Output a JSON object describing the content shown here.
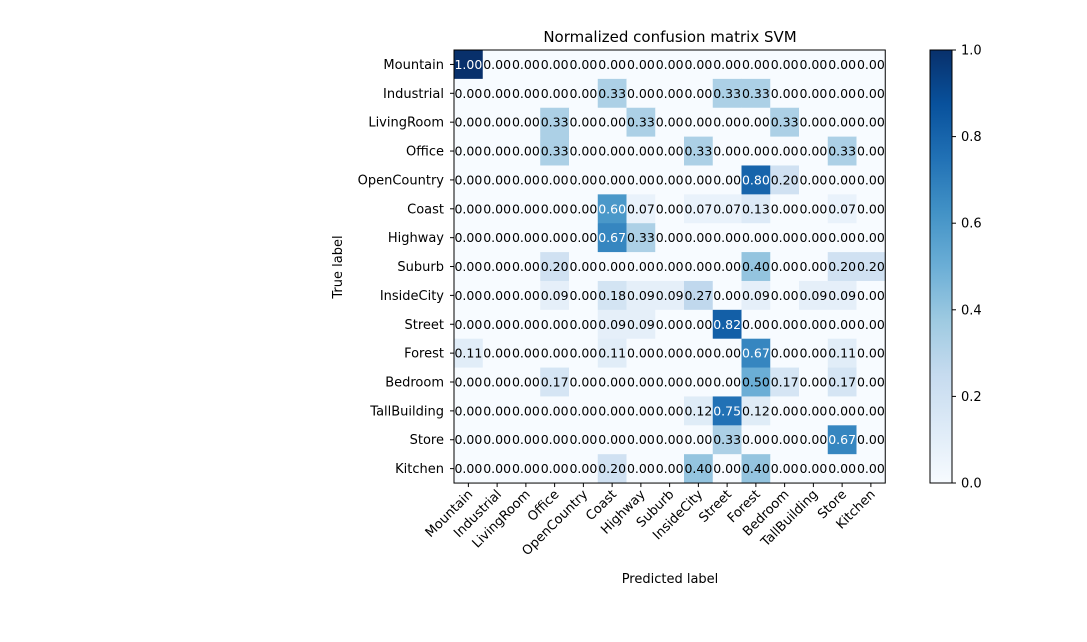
{
  "chart_data": {
    "type": "heatmap",
    "title": "Normalized confusion matrix SVM",
    "xlabel": "Predicted label",
    "ylabel": "True label",
    "row_labels": [
      "Mountain",
      "Industrial",
      "LivingRoom",
      "Office",
      "OpenCountry",
      "Coast",
      "Highway",
      "Suburb",
      "InsideCity",
      "Street",
      "Forest",
      "Bedroom",
      "TallBuilding",
      "Store",
      "Kitchen"
    ],
    "col_labels": [
      "Mountain",
      "Industrial",
      "LivingRoom",
      "Office",
      "OpenCountry",
      "Coast",
      "Highway",
      "Suburb",
      "InsideCity",
      "Street",
      "Forest",
      "Bedroom",
      "TallBuilding",
      "Store",
      "Kitchen"
    ],
    "matrix": [
      [
        1.0,
        0.0,
        0.0,
        0.0,
        0.0,
        0.0,
        0.0,
        0.0,
        0.0,
        0.0,
        0.0,
        0.0,
        0.0,
        0.0,
        0.0
      ],
      [
        0.0,
        0.0,
        0.0,
        0.0,
        0.0,
        0.33,
        0.0,
        0.0,
        0.0,
        0.33,
        0.33,
        0.0,
        0.0,
        0.0,
        0.0
      ],
      [
        0.0,
        0.0,
        0.0,
        0.33,
        0.0,
        0.0,
        0.33,
        0.0,
        0.0,
        0.0,
        0.0,
        0.33,
        0.0,
        0.0,
        0.0
      ],
      [
        0.0,
        0.0,
        0.0,
        0.33,
        0.0,
        0.0,
        0.0,
        0.0,
        0.33,
        0.0,
        0.0,
        0.0,
        0.0,
        0.33,
        0.0
      ],
      [
        0.0,
        0.0,
        0.0,
        0.0,
        0.0,
        0.0,
        0.0,
        0.0,
        0.0,
        0.0,
        0.8,
        0.2,
        0.0,
        0.0,
        0.0
      ],
      [
        0.0,
        0.0,
        0.0,
        0.0,
        0.0,
        0.6,
        0.07,
        0.0,
        0.07,
        0.07,
        0.13,
        0.0,
        0.0,
        0.07,
        0.0
      ],
      [
        0.0,
        0.0,
        0.0,
        0.0,
        0.0,
        0.67,
        0.33,
        0.0,
        0.0,
        0.0,
        0.0,
        0.0,
        0.0,
        0.0,
        0.0
      ],
      [
        0.0,
        0.0,
        0.0,
        0.2,
        0.0,
        0.0,
        0.0,
        0.0,
        0.0,
        0.0,
        0.4,
        0.0,
        0.0,
        0.2,
        0.2
      ],
      [
        0.0,
        0.0,
        0.0,
        0.09,
        0.0,
        0.18,
        0.09,
        0.09,
        0.27,
        0.0,
        0.09,
        0.0,
        0.09,
        0.09,
        0.0
      ],
      [
        0.0,
        0.0,
        0.0,
        0.0,
        0.0,
        0.09,
        0.09,
        0.0,
        0.0,
        0.82,
        0.0,
        0.0,
        0.0,
        0.0,
        0.0
      ],
      [
        0.11,
        0.0,
        0.0,
        0.0,
        0.0,
        0.11,
        0.0,
        0.0,
        0.0,
        0.0,
        0.67,
        0.0,
        0.0,
        0.11,
        0.0
      ],
      [
        0.0,
        0.0,
        0.0,
        0.17,
        0.0,
        0.0,
        0.0,
        0.0,
        0.0,
        0.0,
        0.5,
        0.17,
        0.0,
        0.17,
        0.0
      ],
      [
        0.0,
        0.0,
        0.0,
        0.0,
        0.0,
        0.0,
        0.0,
        0.0,
        0.12,
        0.75,
        0.12,
        0.0,
        0.0,
        0.0,
        0.0
      ],
      [
        0.0,
        0.0,
        0.0,
        0.0,
        0.0,
        0.0,
        0.0,
        0.0,
        0.0,
        0.33,
        0.0,
        0.0,
        0.0,
        0.67,
        0.0
      ],
      [
        0.0,
        0.0,
        0.0,
        0.0,
        0.0,
        0.2,
        0.0,
        0.0,
        0.4,
        0.0,
        0.4,
        0.0,
        0.0,
        0.0,
        0.0
      ]
    ],
    "value_range": [
      0,
      1
    ],
    "colormap": "Blues",
    "colorbar_ticks": [
      "0.0",
      "0.2",
      "0.4",
      "0.6",
      "0.8",
      "1.0"
    ],
    "grid": false,
    "legend": "colorbar-right"
  }
}
